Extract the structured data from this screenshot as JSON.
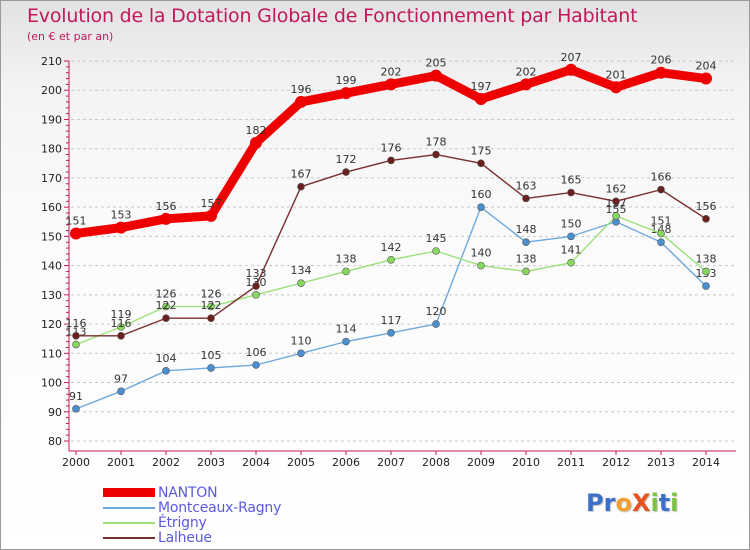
{
  "title": "Evolution de la Dotation Globale de Fonctionnement par Habitant",
  "subtitle": "(en € et par an)",
  "logo": {
    "text": "ProXiti",
    "letters": [
      {
        "ch": "P",
        "color": "#3b6fc9"
      },
      {
        "ch": "r",
        "color": "#3b6fc9"
      },
      {
        "ch": "o",
        "color": "#f0a030"
      },
      {
        "ch": "X",
        "color": "#e8501e"
      },
      {
        "ch": "i",
        "color": "#7cc142"
      },
      {
        "ch": "t",
        "color": "#3b6fc9"
      },
      {
        "ch": "i",
        "color": "#7cc142"
      }
    ]
  },
  "chart_data": {
    "type": "line",
    "title": "Evolution de la Dotation Globale de Fonctionnement par Habitant",
    "subtitle": "(en € et par an)",
    "xlabel": "",
    "ylabel": "",
    "x": [
      "2000",
      "2001",
      "2002",
      "2003",
      "2004",
      "2005",
      "2006",
      "2007",
      "2008",
      "2009",
      "2010",
      "2011",
      "2012",
      "2013",
      "2014"
    ],
    "ylim": [
      80,
      210
    ],
    "yticks": [
      80,
      90,
      100,
      110,
      120,
      130,
      140,
      150,
      160,
      170,
      180,
      190,
      200,
      210
    ],
    "grid": "horizontal dashed",
    "legend_position": "bottom-left",
    "series": [
      {
        "name": "NANTON",
        "color": "#ee0000",
        "values": [
          151,
          153,
          156,
          157,
          182,
          196,
          199,
          202,
          205,
          197,
          202,
          207,
          201,
          206,
          204
        ]
      },
      {
        "name": "Montceaux-Ragny",
        "color": "#6fa8dc",
        "values": [
          91,
          97,
          104,
          105,
          106,
          110,
          114,
          117,
          120,
          160,
          148,
          150,
          155,
          148,
          133
        ]
      },
      {
        "name": "Étrigny",
        "color": "#9be27a",
        "values": [
          113,
          119,
          126,
          126,
          130,
          134,
          138,
          142,
          145,
          140,
          138,
          141,
          157,
          151,
          138
        ]
      },
      {
        "name": "Lalheue",
        "color": "#7a2e2e",
        "values": [
          116,
          116,
          122,
          122,
          133,
          167,
          172,
          176,
          178,
          175,
          163,
          165,
          162,
          166,
          156
        ]
      }
    ],
    "data_labels": [
      [
        "151",
        "153",
        "156",
        "157",
        "182",
        "196",
        "199",
        "202",
        "205",
        "197",
        "202",
        "207",
        "201",
        "206",
        "204"
      ],
      [
        "91",
        "97",
        "104",
        "105",
        "106",
        "110",
        "114",
        "117",
        "120",
        "160",
        "148",
        "150",
        "155",
        "148",
        "133"
      ],
      [
        "113",
        "119",
        "126",
        "126",
        "130",
        "134",
        "138",
        "142",
        "145",
        "140",
        "138",
        "141",
        "157",
        "151",
        "138"
      ],
      [
        "116",
        "116",
        "122",
        "122",
        "133",
        "167",
        "172",
        "176",
        "178",
        "175",
        "163",
        "165",
        "162",
        "166",
        "156"
      ]
    ]
  }
}
